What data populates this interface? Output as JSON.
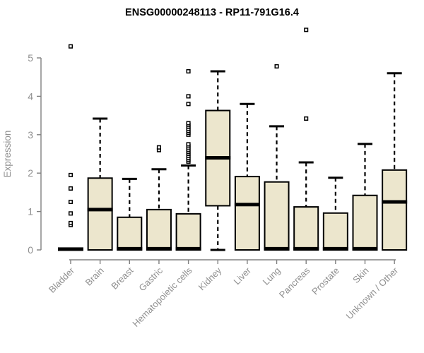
{
  "chart_data": {
    "type": "boxplot",
    "title": "ENSG00000248113 - RP11-791G16.4",
    "ylabel": "Expression",
    "xlabel": "",
    "ylim": [
      0,
      5
    ],
    "yticks": [
      0,
      1,
      2,
      3,
      4,
      5
    ],
    "grid": false,
    "legend": "none",
    "colors": {
      "box_fill": "#ece6cd",
      "box_stroke": "#000000",
      "axis": "#808080",
      "text": "#8f8f8f",
      "title": "#000000",
      "outlier_fill": "#ffffff"
    },
    "categories": [
      "Bladder",
      "Brain",
      "Breast",
      "Gastric",
      "Hematopoietic cells",
      "Kidney",
      "Liver",
      "Lung",
      "Pancreas",
      "Prostate",
      "Skin",
      "Unknown / Other"
    ],
    "series": [
      {
        "name": "Bladder",
        "whisker_low": 0,
        "q1": 0,
        "median": 0.02,
        "q3": 0.04,
        "whisker_high": 0.04,
        "outliers": [
          0.65,
          0.7,
          0.95,
          1.25,
          1.6,
          1.95,
          5.3
        ]
      },
      {
        "name": "Brain",
        "whisker_low": 0,
        "q1": 0,
        "median": 1.05,
        "q3": 1.87,
        "whisker_high": 3.42,
        "outliers": []
      },
      {
        "name": "Breast",
        "whisker_low": 0,
        "q1": 0,
        "median": 0.03,
        "q3": 0.85,
        "whisker_high": 1.85,
        "outliers": []
      },
      {
        "name": "Gastric",
        "whisker_low": 0,
        "q1": 0,
        "median": 0.03,
        "q3": 1.05,
        "whisker_high": 2.1,
        "outliers": [
          2.6,
          2.67
        ]
      },
      {
        "name": "Hematopoietic cells",
        "whisker_low": 0,
        "q1": 0,
        "median": 0.03,
        "q3": 0.94,
        "whisker_high": 2.2,
        "outliers": [
          2.3,
          2.35,
          2.4,
          2.45,
          2.5,
          2.55,
          2.6,
          2.65,
          2.7,
          2.75,
          3.0,
          3.05,
          3.1,
          3.15,
          3.2,
          3.25,
          3.3,
          3.8,
          4.0,
          4.65
        ]
      },
      {
        "name": "Kidney",
        "whisker_low": 0,
        "q1": 1.15,
        "median": 2.4,
        "q3": 3.63,
        "whisker_high": 4.65,
        "outliers": []
      },
      {
        "name": "Liver",
        "whisker_low": 0,
        "q1": 0,
        "median": 1.18,
        "q3": 1.91,
        "whisker_high": 3.8,
        "outliers": []
      },
      {
        "name": "Lung",
        "whisker_low": 0,
        "q1": 0,
        "median": 0.03,
        "q3": 1.77,
        "whisker_high": 3.22,
        "outliers": [
          4.78
        ]
      },
      {
        "name": "Pancreas",
        "whisker_low": 0,
        "q1": 0,
        "median": 0.03,
        "q3": 1.12,
        "whisker_high": 2.28,
        "outliers": [
          3.42,
          5.73
        ]
      },
      {
        "name": "Prostate",
        "whisker_low": 0,
        "q1": 0,
        "median": 0.03,
        "q3": 0.96,
        "whisker_high": 1.88,
        "outliers": []
      },
      {
        "name": "Skin",
        "whisker_low": 0,
        "q1": 0,
        "median": 0.03,
        "q3": 1.42,
        "whisker_high": 2.76,
        "outliers": []
      },
      {
        "name": "Unknown / Other",
        "whisker_low": 0,
        "q1": 0,
        "median": 1.25,
        "q3": 2.08,
        "whisker_high": 4.6,
        "outliers": []
      }
    ]
  }
}
